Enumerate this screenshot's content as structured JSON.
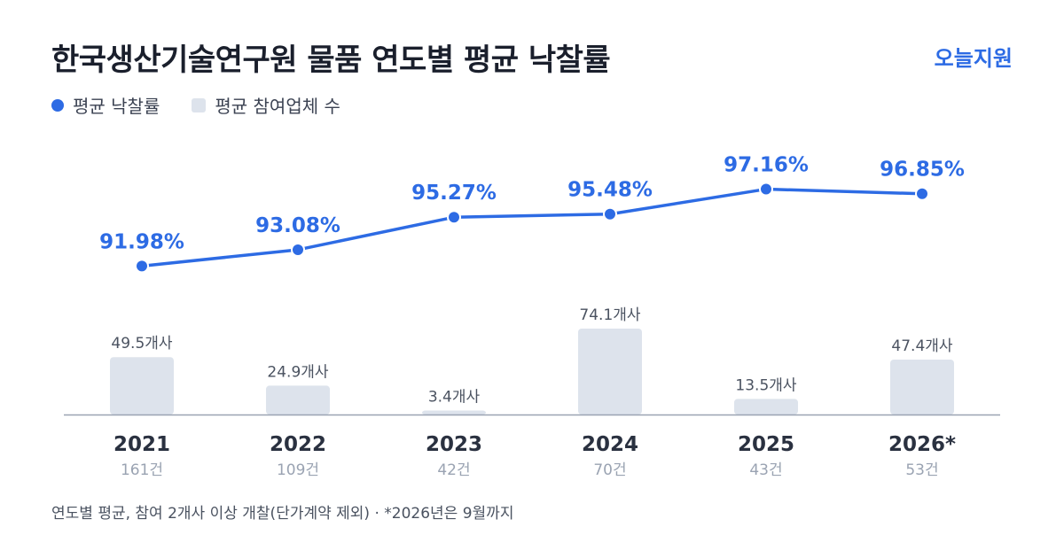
{
  "header": {
    "title": "한국생산기술연구원 물품 연도별 평균 낙찰률",
    "brand": "오늘지원"
  },
  "legend": {
    "line_label": "평균 낙찰률",
    "bar_label": "평균 참여업체 수"
  },
  "colors": {
    "line": "#2d6be4",
    "bar": "#dde3ec",
    "axis": "#9aa3b2",
    "year": "#2a3140",
    "count": "#9aa3b2",
    "bar_label": "#4a5260"
  },
  "chart_data": {
    "type": "bar",
    "categories": [
      "2021",
      "2022",
      "2023",
      "2024",
      "2025",
      "2026*"
    ],
    "counts": [
      "161건",
      "109건",
      "42건",
      "70건",
      "43건",
      "53건"
    ],
    "series": [
      {
        "name": "평균 낙찰률",
        "type": "line",
        "values": [
          91.98,
          93.08,
          95.27,
          95.48,
          97.16,
          96.85
        ],
        "labels": [
          "91.98%",
          "93.08%",
          "95.27%",
          "95.48%",
          "97.16%",
          "96.85%"
        ]
      },
      {
        "name": "평균 참여업체 수",
        "type": "bar",
        "values": [
          49.5,
          24.9,
          3.4,
          74.1,
          13.5,
          47.4
        ],
        "labels": [
          "49.5개사",
          "24.9개사",
          "3.4개사",
          "74.1개사",
          "13.5개사",
          "47.4개사"
        ]
      }
    ],
    "legend_position": "top-left"
  },
  "footnote": "연도별 평균, 참여 2개사 이상 개찰(단가계약 제외) · *2026년은 9월까지"
}
